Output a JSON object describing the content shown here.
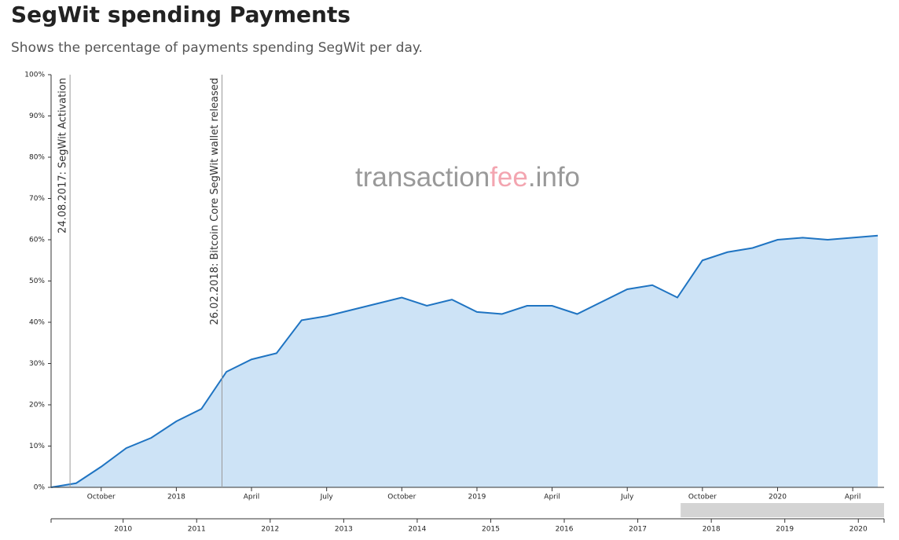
{
  "chart_data": {
    "type": "area",
    "title": "SegWit spending Payments",
    "subtitle": "Shows the percentage of payments spending SegWit per day.",
    "watermark": [
      "transaction",
      "fee",
      ".info"
    ],
    "color": "#1f74c2",
    "fill": "#cde3f6",
    "x": [
      "2017-08",
      "2017-09",
      "2017-10",
      "2017-11",
      "2017-12",
      "2018-01",
      "2018-02",
      "2018-03",
      "2018-04",
      "2018-05",
      "2018-06",
      "2018-07",
      "2018-08",
      "2018-09",
      "2018-10",
      "2018-11",
      "2018-12",
      "2019-01",
      "2019-02",
      "2019-03",
      "2019-04",
      "2019-05",
      "2019-06",
      "2019-07",
      "2019-08",
      "2019-09",
      "2019-10",
      "2019-11",
      "2019-12",
      "2020-01",
      "2020-02",
      "2020-03",
      "2020-04",
      "2020-05"
    ],
    "series": [
      {
        "name": "SegWit spending payments",
        "values": [
          0,
          1,
          5,
          9.5,
          12,
          16,
          19,
          28,
          31,
          32.5,
          40.5,
          41.5,
          43,
          44.5,
          46,
          44,
          45.5,
          42.5,
          42,
          44,
          44,
          42,
          45,
          48,
          49,
          46,
          55,
          57,
          58,
          60,
          60.5,
          60,
          60.5,
          61
        ]
      }
    ],
    "xlim": [
      "2017-08",
      "2020-05"
    ],
    "xticks": [
      {
        "value": "2017-10",
        "label": "October"
      },
      {
        "value": "2018-01",
        "label": "2018"
      },
      {
        "value": "2018-04",
        "label": "April"
      },
      {
        "value": "2018-07",
        "label": "July"
      },
      {
        "value": "2018-10",
        "label": "October"
      },
      {
        "value": "2019-01",
        "label": "2019"
      },
      {
        "value": "2019-04",
        "label": "April"
      },
      {
        "value": "2019-07",
        "label": "July"
      },
      {
        "value": "2019-10",
        "label": "October"
      },
      {
        "value": "2020-01",
        "label": "2020"
      },
      {
        "value": "2020-04",
        "label": "April"
      }
    ],
    "ylim": [
      0,
      100
    ],
    "yticks": [
      {
        "value": 0,
        "label": "0%"
      },
      {
        "value": 10,
        "label": "10%"
      },
      {
        "value": 20,
        "label": "20%"
      },
      {
        "value": 30,
        "label": "30%"
      },
      {
        "value": 40,
        "label": "40%"
      },
      {
        "value": 50,
        "label": "50%"
      },
      {
        "value": 60,
        "label": "60%"
      },
      {
        "value": 70,
        "label": "70%"
      },
      {
        "value": 80,
        "label": "80%"
      },
      {
        "value": 90,
        "label": "90%"
      },
      {
        "value": 100,
        "label": "100%"
      }
    ],
    "annotations": [
      {
        "x": "2017-08-24",
        "text": "24.08.2017: SegWit Activation"
      },
      {
        "x": "2018-02-26",
        "text": "26.02.2018: Bitcoin Core SegWit wallet released"
      }
    ],
    "navigator": {
      "xlim": [
        2009.02,
        2020.35
      ],
      "xticks": [
        2010,
        2011,
        2012,
        2013,
        2014,
        2015,
        2016,
        2017,
        2018,
        2019,
        2020
      ]
    }
  }
}
